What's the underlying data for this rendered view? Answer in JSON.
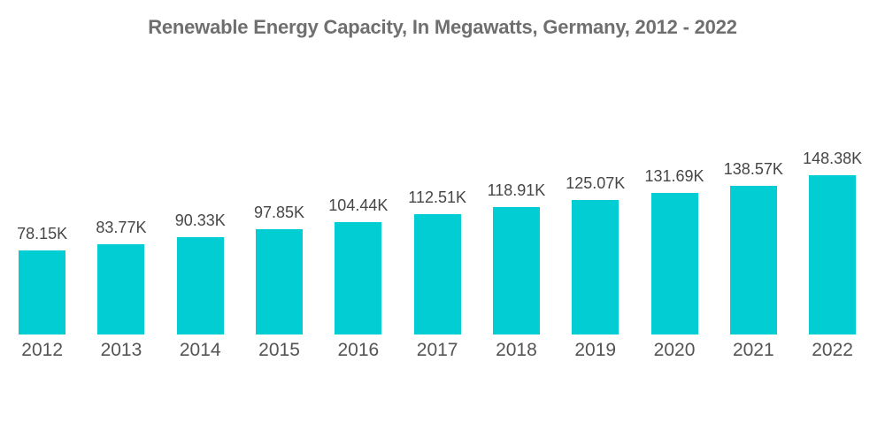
{
  "chart_data": {
    "type": "bar",
    "title": "Renewable Energy Capacity, In Megawatts, Germany, 2012 - 2022",
    "categories": [
      "2012",
      "2013",
      "2014",
      "2015",
      "2016",
      "2017",
      "2018",
      "2019",
      "2020",
      "2021",
      "2022"
    ],
    "values": [
      78150,
      83770,
      90330,
      97850,
      104440,
      112510,
      118910,
      125070,
      131690,
      138570,
      148380
    ],
    "value_labels": [
      "78.15K",
      "83.77K",
      "90.33K",
      "97.85K",
      "104.44K",
      "112.51K",
      "118.91K",
      "125.07K",
      "131.69K",
      "138.57K",
      "148.38K"
    ],
    "xlabel": "",
    "ylabel": "",
    "ylim": [
      0,
      148380
    ],
    "grid": false,
    "legend": "none",
    "bar_color": "#02CDD3",
    "title_color": "#6f6f6f",
    "value_label_color": "#464646",
    "axis_label_color": "#545454",
    "background_color": "#ffffff"
  }
}
